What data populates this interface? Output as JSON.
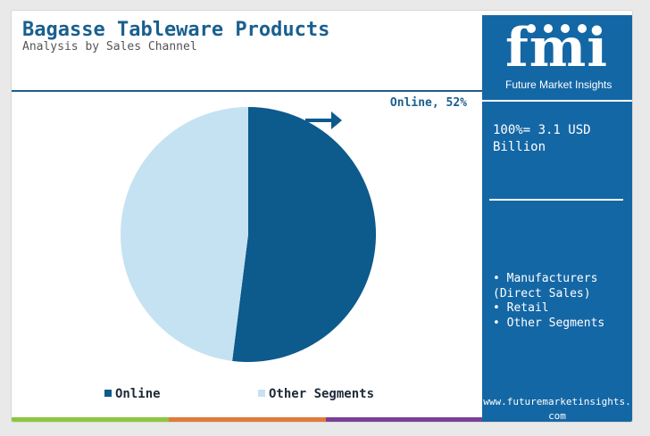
{
  "title": "Bagasse Tableware Products",
  "subtitle": "Analysis by Sales Channel",
  "logo": {
    "text": "fmi",
    "subtext": "Future Market Insights"
  },
  "total_label": "100%= 3.1 USD Billion",
  "segments_list": [
    "Manufacturers (Direct Sales)",
    "Retail",
    "Other Segments"
  ],
  "website": "www.futuremarketinsights.com",
  "colors": {
    "online": "#0d5a8c",
    "other": "#c5e2f2",
    "brand": "#1467a5",
    "title": "#1a5f8f",
    "footer_green": "#8cc63f",
    "footer_orange": "#e07b39",
    "footer_purple": "#7b3f98"
  },
  "chart_data": {
    "type": "pie",
    "title": "Bagasse Tableware Products",
    "subtitle": "Analysis by Sales Channel",
    "slices": [
      {
        "label": "Online",
        "value": 52,
        "color": "#0d5a8c"
      },
      {
        "label": "Other Segments",
        "value": 48,
        "color": "#c5e2f2"
      }
    ],
    "data_labels": [
      {
        "text": "Online, 52%",
        "slice": "Online"
      }
    ],
    "legend": {
      "placement": "bottom",
      "entries": [
        "Online",
        "Other Segments"
      ]
    }
  }
}
